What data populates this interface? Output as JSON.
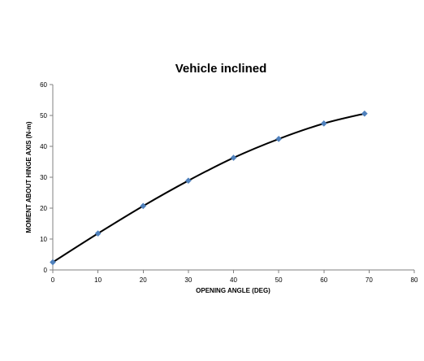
{
  "chart_data": {
    "type": "line",
    "title": "Vehicle inclined",
    "xlabel": "OPENING ANGLE (DEG)",
    "ylabel": "MOMENT ABOUT HINGE AXIS (N-m)",
    "xlim": [
      0,
      80
    ],
    "ylim": [
      0,
      60
    ],
    "xticks": [
      0,
      10,
      20,
      30,
      40,
      50,
      60,
      70,
      80
    ],
    "yticks": [
      0,
      10,
      20,
      30,
      40,
      50,
      60
    ],
    "grid": false,
    "legend": "none",
    "series": [
      {
        "x": [
          0,
          10,
          20,
          30,
          40,
          50,
          60,
          69
        ],
        "y": [
          2.5,
          11.8,
          20.7,
          28.9,
          36.3,
          42.4,
          47.4,
          50.6
        ],
        "line_color": "#000000",
        "marker_color": "#4F81BD",
        "marker": "diamond"
      }
    ]
  }
}
